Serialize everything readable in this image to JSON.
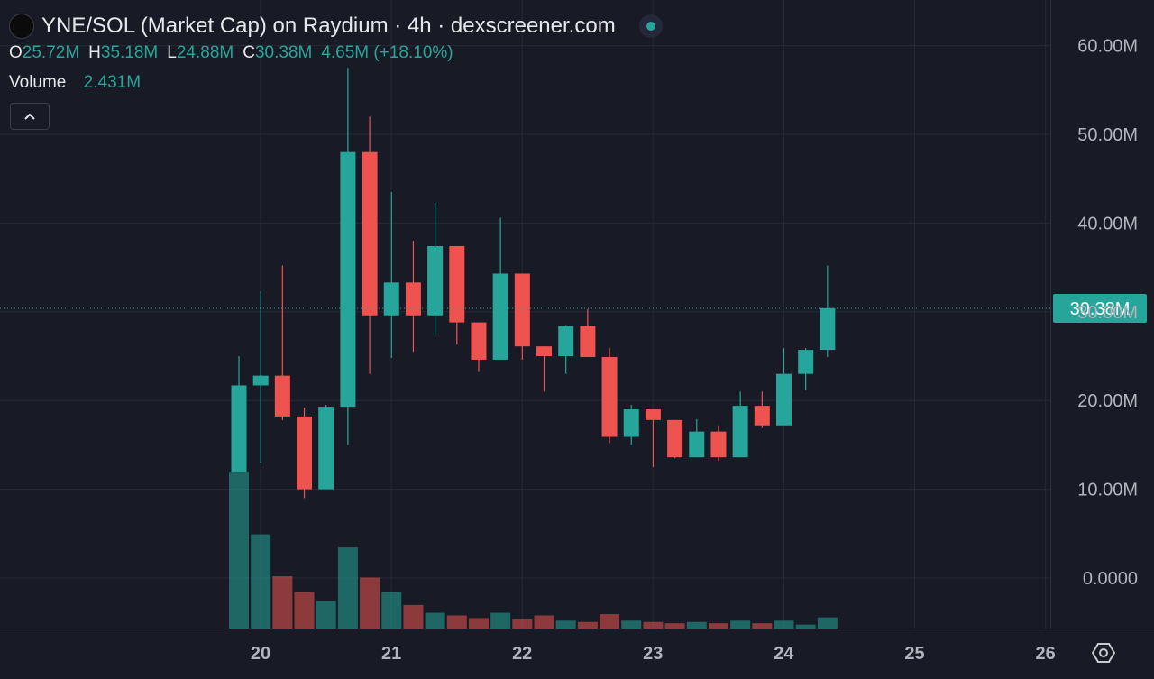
{
  "header": {
    "title": "YNE/SOL (Market Cap) on Raydium · 4h · dexscreener.com",
    "ohlc": {
      "o_label": "O",
      "o_value": "25.72M",
      "h_label": "H",
      "h_value": "35.18M",
      "l_label": "L",
      "l_value": "24.88M",
      "c_label": "C",
      "c_value": "30.38M",
      "change": "4.65M (+18.10%)"
    },
    "volume_label": "Volume",
    "volume_value": "2.431M"
  },
  "colors": {
    "up": "#26a69a",
    "down": "#ef5350",
    "background": "#181b25",
    "grid": "#262a36"
  },
  "icons": {
    "logo": "token-logo-icon",
    "status": "live-status-dot-icon",
    "collapse": "chevron-up-icon",
    "settings": "gear-hexagon-icon"
  },
  "chart_data": {
    "type": "candlestick",
    "y_axis_labels": [
      "60.00M",
      "50.00M",
      "40.00M",
      "30.00M",
      "20.00M",
      "10.00M",
      "0.0000"
    ],
    "y_ticks": [
      60,
      50,
      40,
      30,
      20,
      10,
      0
    ],
    "y_unit": "M",
    "x_axis_labels": [
      "20",
      "21",
      "22",
      "23",
      "24",
      "25",
      "26"
    ],
    "last_price_label": "30.38M",
    "last_price": 30.38,
    "candles": [
      {
        "o": 12.0,
        "h": 25.0,
        "l": 12.0,
        "c": 21.7
      },
      {
        "o": 21.7,
        "h": 32.3,
        "l": 13.0,
        "c": 22.8
      },
      {
        "o": 22.8,
        "h": 35.2,
        "l": 17.8,
        "c": 18.2
      },
      {
        "o": 18.2,
        "h": 19.2,
        "l": 9.0,
        "c": 10.0
      },
      {
        "o": 10.0,
        "h": 19.5,
        "l": 10.0,
        "c": 19.3
      },
      {
        "o": 19.3,
        "h": 57.5,
        "l": 15.0,
        "c": 48.0
      },
      {
        "o": 48.0,
        "h": 52.0,
        "l": 23.0,
        "c": 29.6
      },
      {
        "o": 29.6,
        "h": 43.5,
        "l": 24.8,
        "c": 33.3
      },
      {
        "o": 33.3,
        "h": 38.0,
        "l": 25.5,
        "c": 29.6
      },
      {
        "o": 29.6,
        "h": 42.3,
        "l": 27.5,
        "c": 37.4
      },
      {
        "o": 37.4,
        "h": 37.4,
        "l": 26.3,
        "c": 28.8
      },
      {
        "o": 28.8,
        "h": 28.8,
        "l": 23.3,
        "c": 24.6
      },
      {
        "o": 24.6,
        "h": 40.6,
        "l": 24.6,
        "c": 34.3
      },
      {
        "o": 34.3,
        "h": 34.3,
        "l": 24.6,
        "c": 26.1
      },
      {
        "o": 26.1,
        "h": 26.1,
        "l": 21.0,
        "c": 25.0
      },
      {
        "o": 25.0,
        "h": 28.5,
        "l": 23.0,
        "c": 28.4
      },
      {
        "o": 28.4,
        "h": 30.3,
        "l": 25.0,
        "c": 24.9
      },
      {
        "o": 24.9,
        "h": 25.9,
        "l": 15.2,
        "c": 15.9
      },
      {
        "o": 15.9,
        "h": 19.5,
        "l": 15.0,
        "c": 19.0
      },
      {
        "o": 19.0,
        "h": 19.0,
        "l": 12.5,
        "c": 17.8
      },
      {
        "o": 17.8,
        "h": 17.8,
        "l": 13.5,
        "c": 13.6
      },
      {
        "o": 13.6,
        "h": 17.9,
        "l": 13.6,
        "c": 16.5
      },
      {
        "o": 16.5,
        "h": 17.2,
        "l": 13.2,
        "c": 13.6
      },
      {
        "o": 13.6,
        "h": 21.0,
        "l": 13.6,
        "c": 19.4
      },
      {
        "o": 19.4,
        "h": 21.0,
        "l": 16.9,
        "c": 17.2
      },
      {
        "o": 17.2,
        "h": 25.9,
        "l": 17.2,
        "c": 23.0
      },
      {
        "o": 23.0,
        "h": 25.9,
        "l": 21.2,
        "c": 25.7
      },
      {
        "o": 25.7,
        "h": 35.2,
        "l": 24.9,
        "c": 30.4
      }
    ],
    "volumes": [
      12.0,
      7.2,
      4.0,
      2.8,
      2.1,
      6.2,
      3.9,
      2.8,
      1.8,
      1.2,
      1.0,
      0.8,
      1.2,
      0.7,
      1.0,
      0.6,
      0.5,
      1.1,
      0.6,
      0.5,
      0.4,
      0.5,
      0.4,
      0.6,
      0.4,
      0.6,
      0.3,
      0.85
    ]
  }
}
